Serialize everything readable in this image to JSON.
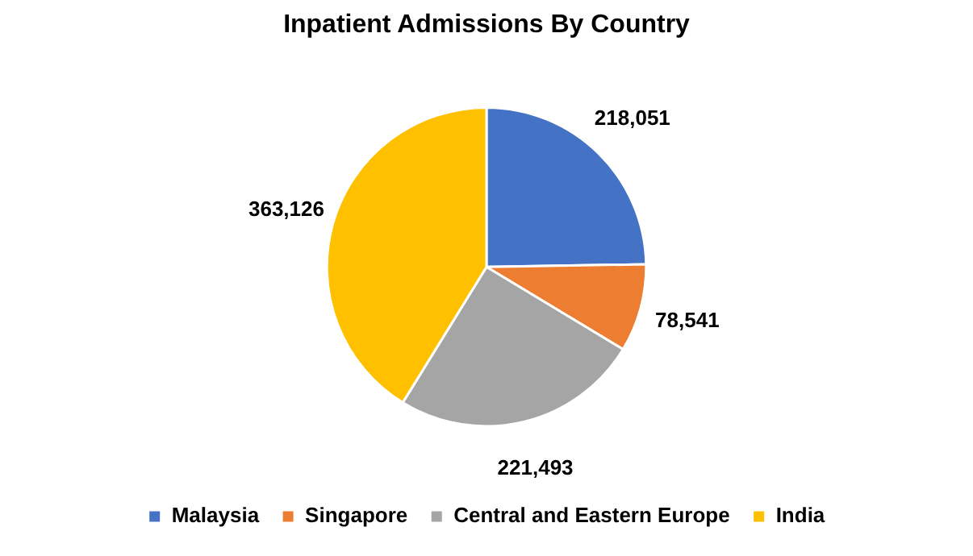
{
  "chart_data": {
    "type": "pie",
    "title": "Inpatient Admissions By Country",
    "categories": [
      "Malaysia",
      "Singapore",
      "Central and Eastern Europe",
      "India"
    ],
    "values": [
      218051,
      78541,
      221493,
      363126
    ],
    "colors": [
      "#4472c4",
      "#ed7d31",
      "#a5a5a5",
      "#ffc000"
    ],
    "value_labels": [
      "218,051",
      "78,541",
      "221,493",
      "363,126"
    ],
    "legend": "bottom"
  }
}
